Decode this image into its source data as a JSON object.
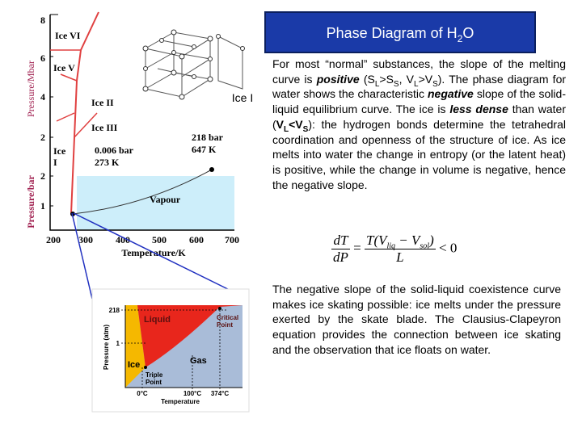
{
  "header": {
    "title": [
      "Phase Diagram of H",
      "2",
      "O"
    ]
  },
  "figure": {
    "y_label_top": "Pressure/Mbar",
    "y_label_bottom": "Pressure/bar",
    "y_ticks_top": [
      "8",
      "6",
      "4",
      "2"
    ],
    "y_ticks_bottom": [
      "2",
      "1"
    ],
    "x_ticks": [
      "200",
      "300",
      "400",
      "500",
      "600",
      "700"
    ],
    "x_label": "Temperature/K",
    "regions": [
      "Ice VI",
      "Ice V",
      "Ice II",
      "Ice III",
      "Vapour"
    ],
    "ice_one": [
      "Ice",
      "I"
    ],
    "crystal_label": "Ice I",
    "triple_point": [
      "0.006 bar",
      "273 K"
    ],
    "critical_point": [
      "218 bar",
      "647 K"
    ]
  },
  "inset": {
    "y_label": "Pressure (atm)",
    "y_ticks": [
      "218",
      "1"
    ],
    "liquid": "Liquid",
    "critical": [
      "Critical",
      "Point"
    ],
    "gas": "Gas",
    "ice": "Ice",
    "triple": [
      "Triple",
      "Point"
    ],
    "x_ticks": [
      "0°C",
      "100°C",
      "374°C"
    ],
    "x_label": "Temperature"
  },
  "paragraph1": [
    "For most “normal” substances, the slope of the melting curve is ",
    "positive",
    " (S",
    "L",
    ">S",
    "S",
    ", V",
    "L",
    ">V",
    "S",
    "). The phase diagram for water shows the characteristic ",
    "negative",
    " slope of the solid-liquid equilibrium curve. The ice is ",
    "less dense",
    " than water (",
    "V",
    "L",
    "<V",
    "S",
    "): the hydrogen bonds determine the tetrahedral coordination and openness of the structure of ice. As ice melts into water the change in entropy (or the latent heat) is positive, while the change in volume is negative, hence the negative slope."
  ],
  "equation": {
    "numerator": "dT",
    "denominator": "dP",
    "rhs_num": [
      "T(V",
      "liq",
      " − V",
      "sol",
      ")"
    ],
    "rhs_den": "L",
    "relation": "< 0"
  },
  "paragraph2": "The negative slope of the solid-liquid coexistence curve makes ice skating possible: ice melts under the pressure exerted by the skate blade. The Clausius-Clapeyron equation provides the connection between ice skating and the observation that ice floats on water."
}
